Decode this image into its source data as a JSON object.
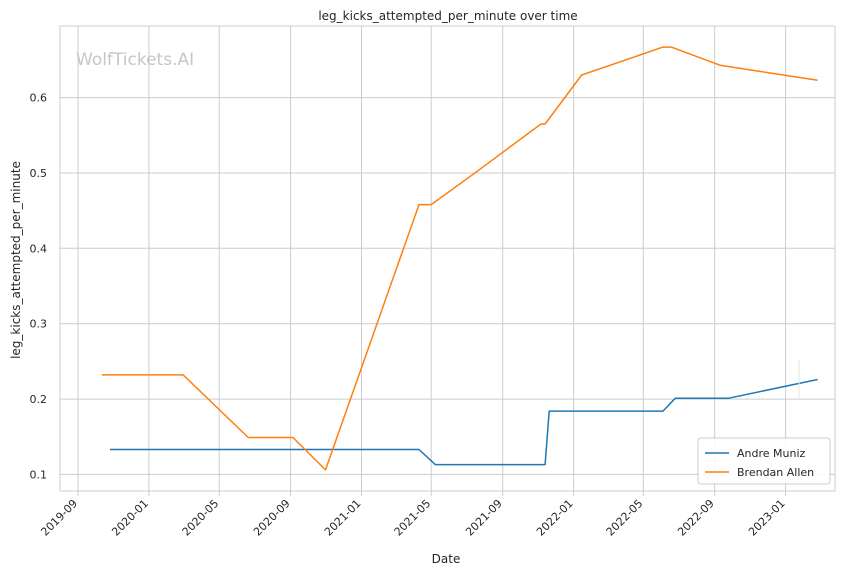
{
  "watermark": "WolfTickets.AI",
  "chart_data": {
    "type": "line",
    "title": "leg_kicks_attempted_per_minute over time",
    "xlabel": "Date",
    "ylabel": "leg_kicks_attempted_per_minute",
    "xlim": [
      "2019-08-01",
      "2023-03-27"
    ],
    "ylim": [
      0.078,
      0.695
    ],
    "x_ticks": [
      "2019-09",
      "2020-01",
      "2020-05",
      "2020-09",
      "2021-01",
      "2021-05",
      "2021-09",
      "2022-01",
      "2022-05",
      "2022-09",
      "2023-01"
    ],
    "y_ticks": [
      0.1,
      0.2,
      0.3,
      0.4,
      0.5,
      0.6
    ],
    "grid": true,
    "legend_position": "lower right",
    "series": [
      {
        "name": "Andre Muniz",
        "color": "#1f77b4",
        "points": [
          [
            "2019-10-26",
            0.133
          ],
          [
            "2021-04-10",
            0.133
          ],
          [
            "2021-05-08",
            0.113
          ],
          [
            "2021-11-13",
            0.113
          ],
          [
            "2021-11-20",
            0.184
          ],
          [
            "2022-06-04",
            0.184
          ],
          [
            "2022-06-25",
            0.201
          ],
          [
            "2022-09-24",
            0.201
          ],
          [
            "2023-02-25",
            0.226
          ]
        ]
      },
      {
        "name": "Brendan Allen",
        "color": "#ff7f0e",
        "points": [
          [
            "2019-10-12",
            0.232
          ],
          [
            "2020-02-29",
            0.232
          ],
          [
            "2020-06-20",
            0.149
          ],
          [
            "2020-09-05",
            0.149
          ],
          [
            "2020-10-31",
            0.106
          ],
          [
            "2021-04-10",
            0.458
          ],
          [
            "2021-05-01",
            0.458
          ],
          [
            "2021-07-17",
            0.501
          ],
          [
            "2021-11-06",
            0.565
          ],
          [
            "2021-11-13",
            0.565
          ],
          [
            "2022-01-15",
            0.63
          ],
          [
            "2022-06-04",
            0.667
          ],
          [
            "2022-06-18",
            0.667
          ],
          [
            "2022-09-10",
            0.643
          ],
          [
            "2023-02-25",
            0.623
          ]
        ]
      }
    ]
  }
}
